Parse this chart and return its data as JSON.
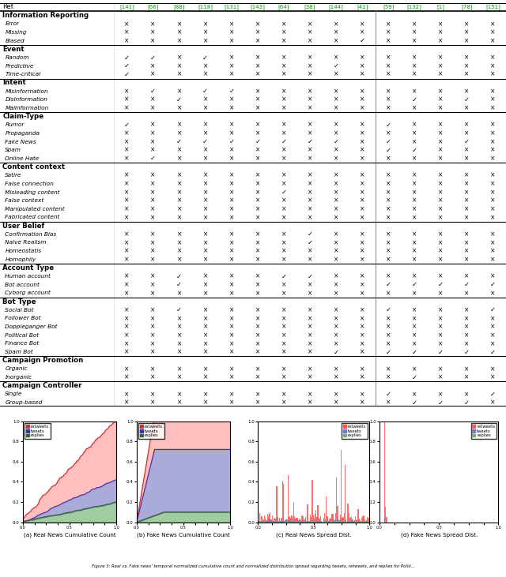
{
  "refs": [
    "[141]",
    "[66]",
    "[88]",
    "[118]",
    "[131]",
    "[143]",
    "[64]",
    "[38]",
    "[144]",
    "[41]",
    "[59]",
    "[132]",
    "[1]",
    "[78]",
    "[151]"
  ],
  "separator_after_col": 9,
  "categories_order": [
    "Information Reporting",
    "Event",
    "Intent",
    "Claim-Type",
    "Content context",
    "User Belief",
    "Account Type",
    "Bot Type",
    "Campaign Promotion",
    "Campaign Controller"
  ],
  "categories": {
    "Information Reporting": [
      "Error",
      "Missing",
      "Biased"
    ],
    "Event": [
      "Random",
      "Predictive",
      "Time-critical"
    ],
    "Intent": [
      "Misinformation",
      "Disinformation",
      "Malinformation"
    ],
    "Claim-Type": [
      "Rumor",
      "Propaganda",
      "Fake News",
      "Spam",
      "Online Hate"
    ],
    "Content context": [
      "Satire",
      "False connection",
      "Misleading content",
      "False context",
      "Manipulated content",
      "Fabricated content"
    ],
    "User Belief": [
      "Confirmation Bias",
      "Naive Realism",
      "Homeostatis",
      "Homophily"
    ],
    "Account Type": [
      "Human account",
      "Bot account",
      "Cyborg account"
    ],
    "Bot Type": [
      "Social Bot",
      "Follower Bot",
      "Doppleganger Bot",
      "Political Bot",
      "Finance Bot",
      "Spam Bot"
    ],
    "Campaign Promotion": [
      "Organic",
      "Inorganic"
    ],
    "Campaign Controller": [
      "Single",
      "Group-based"
    ]
  },
  "checkmarks": {
    "Error": [
      0,
      0,
      0,
      0,
      0,
      0,
      0,
      0,
      0,
      0,
      0,
      0,
      0,
      0,
      0
    ],
    "Missing": [
      0,
      0,
      0,
      0,
      0,
      0,
      0,
      0,
      0,
      0,
      0,
      0,
      0,
      0,
      0
    ],
    "Biased": [
      0,
      0,
      0,
      0,
      0,
      0,
      0,
      0,
      0,
      1,
      0,
      0,
      0,
      0,
      0
    ],
    "Random": [
      1,
      1,
      0,
      1,
      0,
      0,
      0,
      0,
      0,
      0,
      0,
      0,
      0,
      0,
      0
    ],
    "Predictive": [
      1,
      0,
      0,
      0,
      0,
      0,
      0,
      0,
      1,
      0,
      0,
      0,
      0,
      0,
      0
    ],
    "Time-critical": [
      1,
      0,
      0,
      0,
      0,
      0,
      0,
      0,
      0,
      0,
      0,
      0,
      0,
      0,
      0
    ],
    "Misinformation": [
      0,
      1,
      0,
      1,
      1,
      0,
      0,
      0,
      0,
      0,
      0,
      0,
      0,
      0,
      0
    ],
    "Disinformation": [
      0,
      0,
      1,
      0,
      0,
      0,
      0,
      0,
      0,
      0,
      0,
      1,
      0,
      1,
      0
    ],
    "Malinformation": [
      0,
      0,
      0,
      0,
      0,
      0,
      0,
      0,
      0,
      0,
      0,
      0,
      0,
      0,
      0
    ],
    "Rumor": [
      1,
      0,
      0,
      0,
      0,
      0,
      0,
      0,
      0,
      0,
      1,
      0,
      0,
      0,
      0
    ],
    "Propaganda": [
      0,
      0,
      0,
      0,
      0,
      0,
      0,
      0,
      0,
      0,
      0,
      0,
      0,
      0,
      0
    ],
    "Fake News": [
      0,
      0,
      1,
      1,
      1,
      1,
      1,
      1,
      1,
      0,
      1,
      0,
      0,
      1,
      0
    ],
    "Spam": [
      0,
      0,
      0,
      0,
      0,
      0,
      0,
      0,
      0,
      0,
      1,
      1,
      0,
      0,
      0
    ],
    "Online Hate": [
      0,
      1,
      0,
      0,
      0,
      0,
      0,
      0,
      0,
      0,
      0,
      0,
      0,
      0,
      0
    ],
    "Satire": [
      0,
      0,
      0,
      0,
      0,
      0,
      0,
      0,
      0,
      0,
      0,
      0,
      0,
      0,
      0
    ],
    "False connection": [
      0,
      0,
      0,
      0,
      0,
      0,
      0,
      0,
      0,
      0,
      0,
      0,
      0,
      0,
      0
    ],
    "Misleading content": [
      0,
      0,
      0,
      0,
      0,
      0,
      1,
      0,
      0,
      0,
      0,
      0,
      0,
      0,
      0
    ],
    "False context": [
      0,
      0,
      0,
      0,
      0,
      0,
      0,
      0,
      0,
      0,
      0,
      0,
      0,
      0,
      0
    ],
    "Manipulated content": [
      0,
      0,
      0,
      0,
      0,
      0,
      0,
      0,
      0,
      0,
      0,
      0,
      0,
      0,
      0
    ],
    "Fabricated content": [
      0,
      0,
      0,
      0,
      0,
      0,
      0,
      0,
      0,
      0,
      0,
      0,
      0,
      0,
      0
    ],
    "Confirmation Bias": [
      0,
      0,
      0,
      0,
      0,
      0,
      0,
      1,
      0,
      0,
      0,
      0,
      0,
      0,
      0
    ],
    "Naive Realism": [
      0,
      0,
      0,
      0,
      0,
      0,
      0,
      1,
      0,
      0,
      0,
      0,
      0,
      0,
      0
    ],
    "Homeostatis": [
      0,
      0,
      0,
      0,
      0,
      0,
      0,
      0,
      0,
      0,
      0,
      0,
      0,
      0,
      0
    ],
    "Homophily": [
      0,
      0,
      0,
      0,
      0,
      0,
      0,
      0,
      0,
      0,
      0,
      0,
      0,
      0,
      0
    ],
    "Human account": [
      0,
      0,
      1,
      0,
      0,
      0,
      1,
      1,
      0,
      0,
      0,
      0,
      0,
      0,
      0
    ],
    "Bot account": [
      0,
      0,
      1,
      0,
      0,
      0,
      0,
      0,
      0,
      0,
      1,
      1,
      1,
      1,
      1
    ],
    "Cyborg account": [
      0,
      0,
      0,
      0,
      0,
      0,
      0,
      0,
      0,
      0,
      0,
      0,
      0,
      0,
      0
    ],
    "Social Bot": [
      0,
      0,
      1,
      0,
      0,
      0,
      0,
      0,
      0,
      0,
      1,
      0,
      0,
      0,
      1
    ],
    "Follower Bot": [
      0,
      0,
      0,
      0,
      0,
      0,
      0,
      0,
      0,
      0,
      0,
      0,
      0,
      0,
      0
    ],
    "Doppleganger Bot": [
      0,
      0,
      0,
      0,
      0,
      0,
      0,
      0,
      0,
      0,
      0,
      0,
      0,
      0,
      0
    ],
    "Political Bot": [
      0,
      0,
      0,
      0,
      0,
      0,
      0,
      0,
      0,
      0,
      0,
      0,
      0,
      0,
      0
    ],
    "Finance Bot": [
      0,
      0,
      0,
      0,
      0,
      0,
      0,
      0,
      0,
      0,
      0,
      0,
      0,
      0,
      0
    ],
    "Spam Bot": [
      0,
      0,
      0,
      0,
      0,
      0,
      0,
      0,
      1,
      0,
      1,
      1,
      1,
      1,
      1
    ],
    "Organic": [
      0,
      0,
      0,
      0,
      0,
      0,
      0,
      0,
      0,
      0,
      0,
      0,
      0,
      0,
      0
    ],
    "Inorganic": [
      0,
      0,
      0,
      0,
      0,
      0,
      0,
      0,
      0,
      0,
      0,
      1,
      0,
      0,
      0
    ],
    "Single": [
      0,
      0,
      0,
      0,
      0,
      0,
      0,
      0,
      0,
      0,
      1,
      0,
      0,
      0,
      1
    ],
    "Group-based": [
      0,
      0,
      0,
      0,
      0,
      0,
      0,
      0,
      0,
      0,
      0,
      1,
      1,
      1,
      0
    ]
  },
  "fig_caption": "Figure 3: Real vs. Fake news’ temporal normalized cumulative count and normalized distribution spread regarding tweets, retweets, and replies for Politi..."
}
